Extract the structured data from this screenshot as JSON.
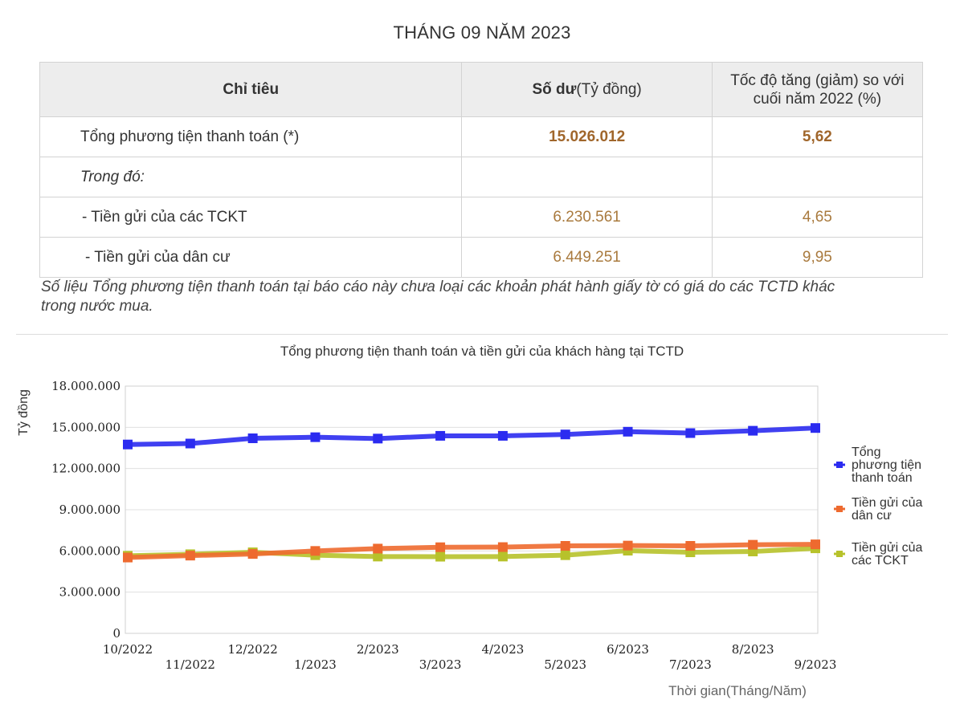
{
  "page_title": "THÁNG 09 NĂM 2023",
  "table": {
    "headers": [
      "Chỉ tiêu",
      "Số dư(Tỷ đồng)",
      "Tốc độ tăng (giảm) so với cuối năm 2022 (%)"
    ],
    "header_col2_bold": "Số dư",
    "header_col2_rest": "(Tỷ đồng)",
    "header_col3_line1": "Tốc độ tăng (giảm) so với",
    "header_col3_line2": "cuối năm 2022 (%)",
    "rows": [
      {
        "label": "Tổng phương tiện thanh toán (*)",
        "balance": "15.026.012",
        "growth": "5,62"
      },
      {
        "label": "Trong đó:",
        "balance": "",
        "growth": ""
      },
      {
        "label": "- Tiền gửi của các TCKT",
        "balance": "6.230.561",
        "growth": "4,65"
      },
      {
        "label": " - Tiền gửi của dân cư",
        "balance": "6.449.251",
        "growth": "9,95"
      }
    ]
  },
  "note_line1": "Số liệu Tổng phương tiện thanh toán tại báo cáo này chưa loại các khoản phát hành giấy tờ có giá do các TCTD khác",
  "note_line2": "trong nước mua.",
  "chart_data": {
    "type": "line",
    "title": "Tổng phương tiện thanh toán và tiền gửi của khách hàng tại TCTD",
    "ylabel": "Tỷ đồng",
    "xlabel": "Thời gian(Tháng/Năm)",
    "ylim": [
      0,
      18000000
    ],
    "yticks": [
      "0",
      "3.000.000",
      "6.000.000",
      "9.000.000",
      "12.000.000",
      "15.000.000",
      "18.000.000"
    ],
    "ytick_values": [
      0,
      3000000,
      6000000,
      9000000,
      12000000,
      15000000,
      18000000
    ],
    "categories": [
      "10/2022",
      "11/2022",
      "12/2022",
      "1/2023",
      "2/2023",
      "3/2023",
      "4/2023",
      "5/2023",
      "6/2023",
      "7/2023",
      "8/2023",
      "9/2023"
    ],
    "grid": true,
    "legend_position": "right",
    "series": [
      {
        "name_lines": [
          "Tổng",
          "phương tiện",
          "thanh toán"
        ],
        "color": "#2b2bf0",
        "values": [
          13750000,
          13820000,
          14200000,
          14280000,
          14180000,
          14380000,
          14380000,
          14480000,
          14680000,
          14580000,
          14750000,
          14950000
        ]
      },
      {
        "name_lines": [
          "Tiền gửi của",
          "dân cư"
        ],
        "color": "#ee6a2f",
        "values": [
          5520000,
          5660000,
          5780000,
          6000000,
          6170000,
          6270000,
          6280000,
          6370000,
          6390000,
          6370000,
          6450000,
          6480000
        ]
      },
      {
        "name_lines": [
          "Tiền gửi của",
          "các TCKT"
        ],
        "color": "#b7c22b",
        "values": [
          5650000,
          5760000,
          5900000,
          5690000,
          5590000,
          5580000,
          5590000,
          5690000,
          6020000,
          5900000,
          5960000,
          6190000
        ]
      }
    ]
  }
}
